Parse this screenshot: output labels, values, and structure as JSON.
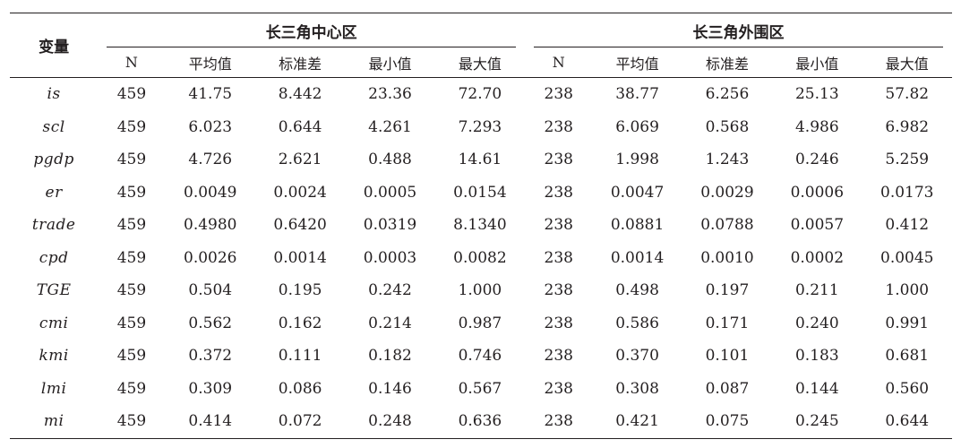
{
  "table": {
    "var_header": "变量",
    "groups": [
      {
        "title": "长三角中心区"
      },
      {
        "title": "长三角外围区"
      }
    ],
    "subheaders": [
      "N",
      "平均值",
      "标准差",
      "最小值",
      "最大值",
      "N",
      "平均值",
      "标准差",
      "最小值",
      "最大值"
    ],
    "rows": [
      {
        "var": "is",
        "cells": [
          "459",
          "41.75",
          "8.442",
          "23.36",
          "72.70",
          "238",
          "38.77",
          "6.256",
          "25.13",
          "57.82"
        ]
      },
      {
        "var": "scl",
        "cells": [
          "459",
          "6.023",
          "0.644",
          "4.261",
          "7.293",
          "238",
          "6.069",
          "0.568",
          "4.986",
          "6.982"
        ]
      },
      {
        "var": "pgdp",
        "cells": [
          "459",
          "4.726",
          "2.621",
          "0.488",
          "14.61",
          "238",
          "1.998",
          "1.243",
          "0.246",
          "5.259"
        ]
      },
      {
        "var": "er",
        "cells": [
          "459",
          "0.0049",
          "0.0024",
          "0.0005",
          "0.0154",
          "238",
          "0.0047",
          "0.0029",
          "0.0006",
          "0.0173"
        ]
      },
      {
        "var": "trade",
        "cells": [
          "459",
          "0.4980",
          "0.6420",
          "0.0319",
          "8.1340",
          "238",
          "0.0881",
          "0.0788",
          "0.0057",
          "0.412"
        ]
      },
      {
        "var": "cpd",
        "cells": [
          "459",
          "0.0026",
          "0.0014",
          "0.0003",
          "0.0082",
          "238",
          "0.0014",
          "0.0010",
          "0.0002",
          "0.0045"
        ]
      },
      {
        "var": "TGE",
        "cells": [
          "459",
          "0.504",
          "0.195",
          "0.242",
          "1.000",
          "238",
          "0.498",
          "0.197",
          "0.211",
          "1.000"
        ]
      },
      {
        "var": "cmi",
        "cells": [
          "459",
          "0.562",
          "0.162",
          "0.214",
          "0.987",
          "238",
          "0.586",
          "0.171",
          "0.240",
          "0.991"
        ]
      },
      {
        "var": "kmi",
        "cells": [
          "459",
          "0.372",
          "0.111",
          "0.182",
          "0.746",
          "238",
          "0.370",
          "0.101",
          "0.183",
          "0.681"
        ]
      },
      {
        "var": "lmi",
        "cells": [
          "459",
          "0.309",
          "0.086",
          "0.146",
          "0.567",
          "238",
          "0.308",
          "0.087",
          "0.144",
          "0.560"
        ]
      },
      {
        "var": "mi",
        "cells": [
          "459",
          "0.414",
          "0.072",
          "0.248",
          "0.636",
          "238",
          "0.421",
          "0.075",
          "0.245",
          "0.644"
        ]
      }
    ]
  }
}
